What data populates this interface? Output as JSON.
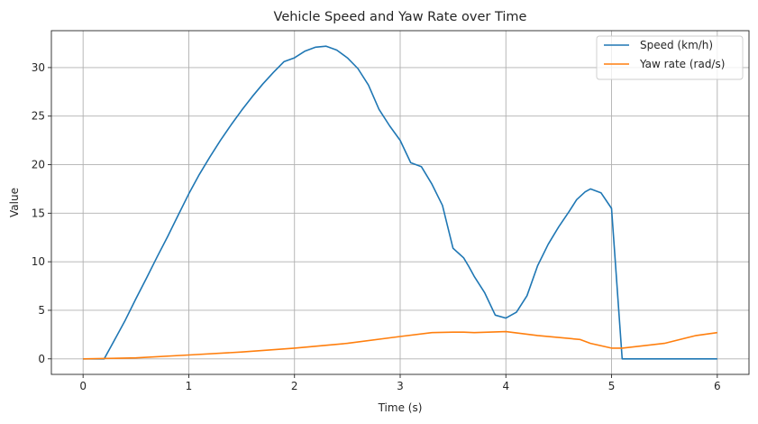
{
  "chart_data": {
    "type": "line",
    "title": "Vehicle Speed and Yaw Rate over Time",
    "xlabel": "Time (s)",
    "ylabel": "Value",
    "xlim": [
      -0.3,
      6.3
    ],
    "ylim": [
      -1.6,
      33.8
    ],
    "xticks": [
      0,
      1,
      2,
      3,
      4,
      5,
      6
    ],
    "yticks": [
      0,
      5,
      10,
      15,
      20,
      25,
      30
    ],
    "grid": true,
    "legend": "top-right",
    "series": [
      {
        "name": "Speed (km/h)",
        "color": "#1f77b4",
        "x": [
          0,
          0.1,
          0.2,
          0.3,
          0.4,
          0.5,
          0.6,
          0.7,
          0.8,
          0.9,
          1.0,
          1.1,
          1.2,
          1.3,
          1.4,
          1.5,
          1.6,
          1.7,
          1.8,
          1.9,
          2.0,
          2.1,
          2.2,
          2.3,
          2.4,
          2.5,
          2.6,
          2.7,
          2.8,
          2.9,
          3.0,
          3.1,
          3.2,
          3.3,
          3.4,
          3.5,
          3.6,
          3.65,
          3.7,
          3.8,
          3.9,
          4.0,
          4.1,
          4.2,
          4.3,
          4.4,
          4.5,
          4.6,
          4.67,
          4.75,
          4.8,
          4.9,
          5.0,
          5.1,
          5.2,
          5.3,
          5.4,
          5.5,
          5.6,
          5.7,
          5.8,
          5.9,
          6.0
        ],
        "values": [
          0,
          0,
          0,
          2.0,
          4.0,
          6.2,
          8.3,
          10.5,
          12.6,
          14.8,
          17.0,
          19.0,
          20.8,
          22.5,
          24.1,
          25.6,
          27.0,
          28.3,
          29.5,
          30.6,
          31.0,
          31.7,
          32.1,
          32.2,
          31.8,
          31.0,
          29.9,
          28.2,
          25.7,
          24.0,
          22.5,
          20.2,
          19.8,
          18.0,
          15.8,
          11.4,
          10.4,
          9.5,
          8.5,
          6.8,
          4.5,
          4.2,
          4.8,
          6.5,
          9.6,
          11.8,
          13.6,
          15.2,
          16.4,
          17.2,
          17.5,
          17.1,
          15.5,
          0,
          0,
          0,
          0,
          0,
          0,
          0,
          0,
          0,
          0
        ],
        "values_note_removed": true
      },
      {
        "name": "Yaw rate (rad/s)",
        "color": "#ff7f0e",
        "x": [
          0,
          0.5,
          1.0,
          1.5,
          2.0,
          2.5,
          3.0,
          3.3,
          3.5,
          3.6,
          3.7,
          4.0,
          4.3,
          4.7,
          4.8,
          5.0,
          5.1,
          5.5,
          5.8,
          6.0
        ],
        "values": [
          0,
          0.1,
          0.4,
          0.7,
          1.1,
          1.6,
          2.3,
          2.7,
          2.75,
          2.75,
          2.7,
          2.8,
          2.4,
          2.0,
          1.6,
          1.1,
          1.1,
          1.6,
          2.4,
          2.7
        ]
      }
    ]
  }
}
